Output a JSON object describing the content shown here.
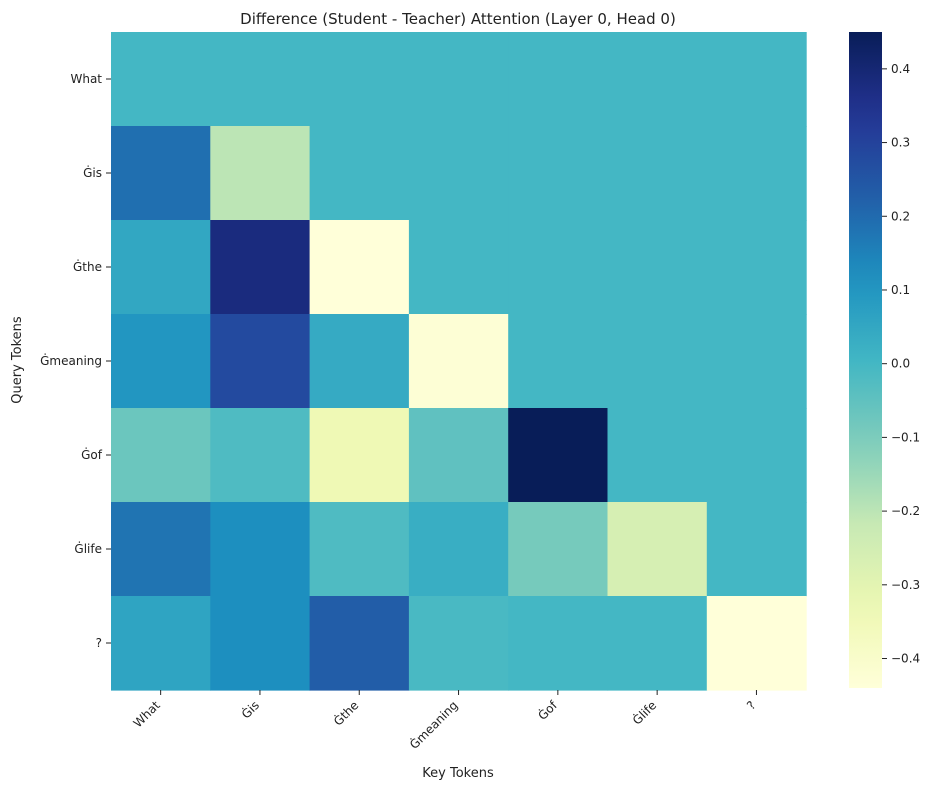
{
  "chart_data": {
    "type": "heatmap",
    "title": "Difference (Student - Teacher) Attention (Layer 0, Head 0)",
    "xlabel": "Key Tokens",
    "ylabel": "Query Tokens",
    "x_tokens": [
      "What",
      "Ġis",
      "Ġthe",
      "Ġmeaning",
      "Ġof",
      "Ġlife",
      "?"
    ],
    "y_tokens": [
      "What",
      "Ġis",
      "Ġthe",
      "Ġmeaning",
      "Ġof",
      "Ġlife",
      "?"
    ],
    "values": [
      [
        0.0,
        0.0,
        0.0,
        0.0,
        0.0,
        0.0,
        0.0
      ],
      [
        0.19,
        -0.2,
        0.0,
        0.0,
        0.0,
        0.0,
        0.0
      ],
      [
        0.05,
        0.38,
        -0.44,
        0.0,
        0.0,
        0.0,
        0.0
      ],
      [
        0.1,
        0.28,
        0.04,
        -0.43,
        0.0,
        0.0,
        0.0
      ],
      [
        -0.07,
        -0.02,
        -0.34,
        -0.05,
        0.45,
        0.0,
        0.0
      ],
      [
        0.18,
        0.12,
        -0.02,
        0.03,
        -0.09,
        -0.26,
        0.0
      ],
      [
        0.06,
        0.12,
        0.23,
        -0.01,
        0.0,
        0.0,
        -0.44
      ]
    ],
    "colorbar": {
      "min": -0.44,
      "max": 0.45,
      "colormap": "YlGnBu",
      "ticks": [
        0.4,
        0.3,
        0.2,
        0.1,
        0.0,
        -0.1,
        -0.2,
        -0.3,
        -0.4
      ],
      "tick_labels": [
        "0.4",
        "0.3",
        "0.2",
        "0.1",
        "0.0",
        "−0.1",
        "−0.2",
        "−0.3",
        "−0.4"
      ]
    }
  }
}
